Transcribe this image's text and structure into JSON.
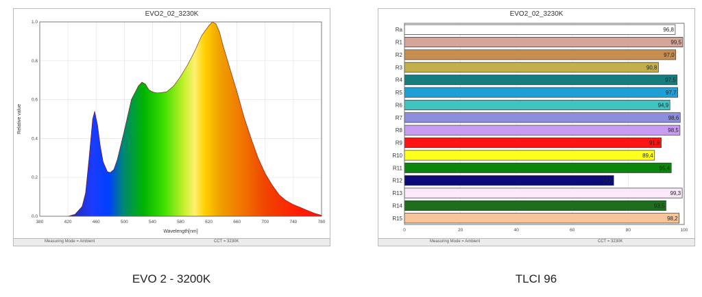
{
  "captions": {
    "left": "EVO 2 - 3200K",
    "right": "TLCI 96"
  },
  "chart_data": [
    {
      "type": "area",
      "title": "EVO2_02_3230K",
      "xlabel": "Wavelength[nm]",
      "ylabel": "Relative value",
      "xlim": [
        380,
        780
      ],
      "ylim": [
        0,
        1.0
      ],
      "x_ticks": [
        "380",
        "420",
        "460",
        "500",
        "540",
        "580",
        "620",
        "660",
        "700",
        "740",
        "780"
      ],
      "y_ticks": [
        "0.0",
        "0.2",
        "0.4",
        "0.6",
        "0.8",
        "1.0"
      ],
      "grid": true,
      "x": [
        420,
        430,
        440,
        445,
        450,
        455,
        458,
        462,
        466,
        470,
        476,
        480,
        485,
        490,
        500,
        510,
        520,
        525,
        530,
        535,
        540,
        545,
        550,
        560,
        570,
        580,
        590,
        600,
        610,
        620,
        625,
        630,
        635,
        640,
        645,
        650,
        660,
        670,
        680,
        690,
        700,
        710,
        720,
        730,
        740,
        750,
        760,
        770,
        780
      ],
      "values": [
        0.0,
        0.01,
        0.05,
        0.12,
        0.3,
        0.5,
        0.54,
        0.47,
        0.36,
        0.28,
        0.23,
        0.225,
        0.24,
        0.29,
        0.44,
        0.6,
        0.67,
        0.69,
        0.68,
        0.65,
        0.64,
        0.635,
        0.635,
        0.64,
        0.67,
        0.72,
        0.78,
        0.85,
        0.93,
        0.98,
        1.0,
        0.99,
        0.95,
        0.88,
        0.82,
        0.76,
        0.64,
        0.51,
        0.4,
        0.3,
        0.22,
        0.16,
        0.11,
        0.08,
        0.06,
        0.045,
        0.03,
        0.015,
        0.005
      ],
      "status": {
        "left": "Measuring Mode = Ambient",
        "right": "CCT = 3230K"
      }
    },
    {
      "type": "bar",
      "orientation": "horizontal",
      "title": "EVO2_02_3230K",
      "xlim": [
        0,
        100
      ],
      "x_ticks": [
        "0",
        "20",
        "40",
        "60",
        "80",
        "100"
      ],
      "grid": true,
      "categories": [
        "Ra",
        "R1",
        "R2",
        "R3",
        "R4",
        "R5",
        "R6",
        "R7",
        "R8",
        "R9",
        "R10",
        "R11",
        "R12",
        "R13",
        "R14",
        "R15"
      ],
      "values": [
        96.8,
        99.5,
        97.0,
        90.8,
        97.5,
        97.7,
        94.9,
        98.6,
        98.5,
        91.8,
        89.4,
        95.4,
        74.8,
        99.3,
        93.5,
        98.2
      ],
      "value_labels": [
        "96,8",
        "99,5",
        "97,0",
        "90,8",
        "97,5",
        "97,7",
        "94,9",
        "98,6",
        "98,5",
        "91,8",
        "89,4",
        "95,4",
        "74,8",
        "99,3",
        "93,5",
        "98,2"
      ],
      "colors": [
        "#ffffff",
        "#d6a59a",
        "#c78e4f",
        "#c3b04a",
        "#157d7d",
        "#1e9fd6",
        "#40c4c2",
        "#8e8ee0",
        "#c89cf0",
        "#ff1414",
        "#ffff1e",
        "#0a860a",
        "#0a0a78",
        "#fbe8f8",
        "#1e6e1e",
        "#f8c49a"
      ],
      "status": {
        "left": "Measuring Mode = Ambient",
        "right": "CCT = 3230K"
      }
    }
  ]
}
